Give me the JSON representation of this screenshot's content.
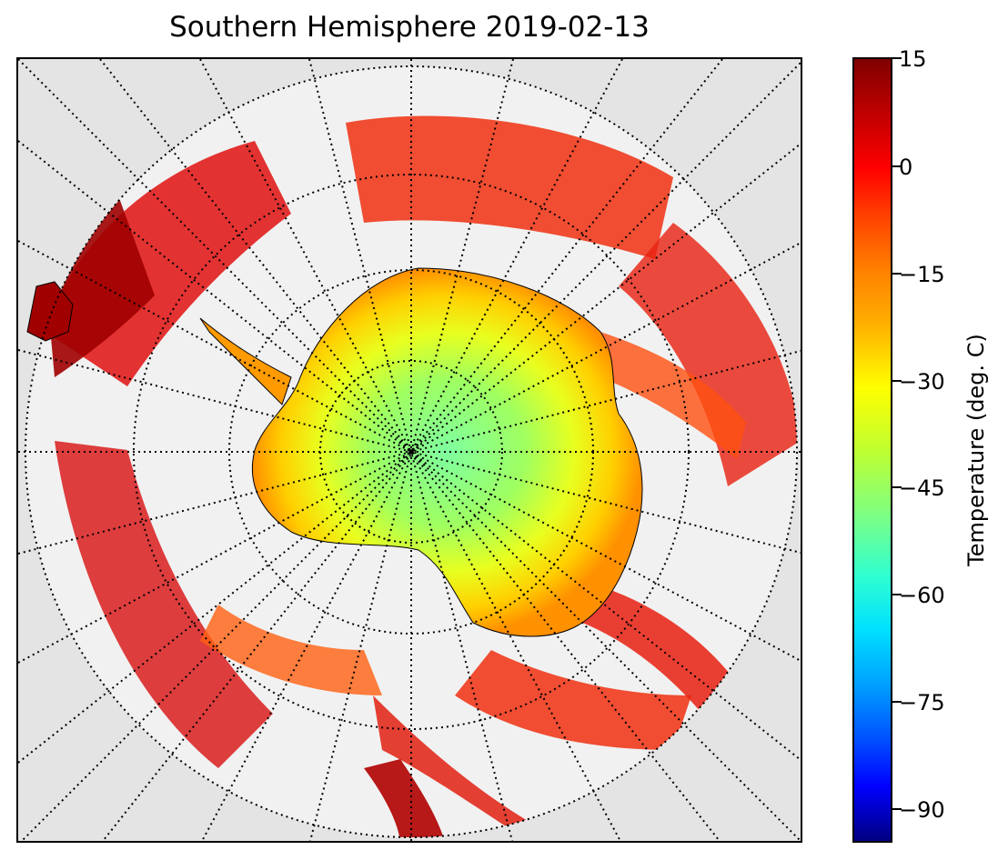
{
  "title": "Southern Hemisphere 2019-02-13",
  "colorbar": {
    "label": "Temperature (deg. C)",
    "ticks": [
      "15",
      "0",
      "−15",
      "−30",
      "−45",
      "−60",
      "−75",
      "−90"
    ],
    "range": [
      -95,
      15
    ],
    "colormap": "jet"
  },
  "map": {
    "projection": "south polar stereographic",
    "background_color": "#e4e4e4",
    "graticule": "dotted meridians and parallels"
  }
}
